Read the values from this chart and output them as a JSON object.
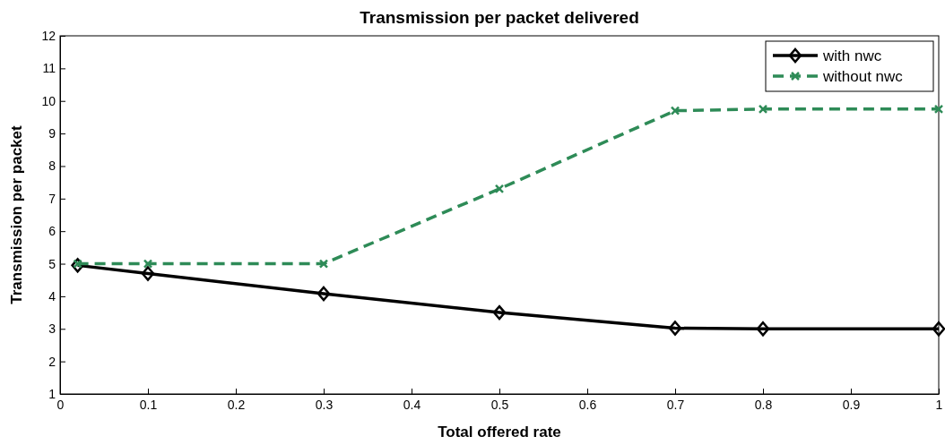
{
  "chart_data": {
    "type": "line",
    "title": "Transmission per packet delivered",
    "xlabel": "Total offered rate",
    "ylabel": "Transmission per packet",
    "xlim": [
      0,
      1
    ],
    "xticks": [
      0,
      0.1,
      0.2,
      0.3,
      0.4,
      0.5,
      0.6,
      0.7,
      0.8,
      0.9,
      1
    ],
    "ylim": [
      1,
      12
    ],
    "yticks": [
      1,
      2,
      3,
      4,
      5,
      6,
      7,
      8,
      9,
      10,
      11,
      12
    ],
    "x": [
      0.02,
      0.1,
      0.3,
      0.5,
      0.7,
      0.8,
      1
    ],
    "legend": "top right",
    "grid": false,
    "series": [
      {
        "name": "with nwc",
        "color": "#000000",
        "marker": "diamond",
        "line_style": "solid",
        "values": [
          4.95,
          4.7,
          4.08,
          3.5,
          3.02,
          3.0,
          3.0
        ]
      },
      {
        "name": "without nwc",
        "color": "#2e8b57",
        "marker": "cross",
        "line_style": "dashed",
        "values": [
          5.0,
          5.0,
          5.0,
          7.3,
          9.7,
          9.75,
          9.75
        ]
      }
    ]
  }
}
